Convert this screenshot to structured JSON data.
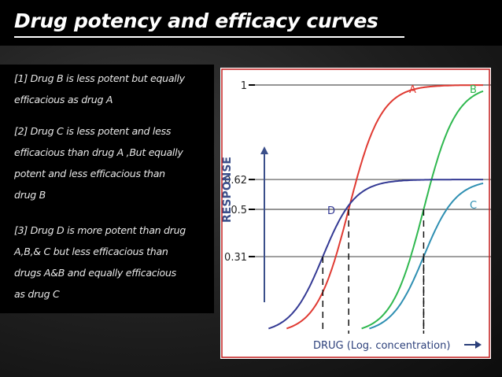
{
  "title": "Drug potency and efficacy curves",
  "paragraphs": [
    [
      "[1] Drug B is less potent but equally",
      "efficacious as drug A"
    ],
    [
      "[2] Drug C is less potent and less",
      "efficacious than drug A ,But equally",
      "potent and less efficacious than",
      "drug  B"
    ],
    [
      "[3] Drug D is more potent than drug",
      "A,B,& C but less efficacious than",
      "drugs A&B and equally efficacious",
      "as drug C"
    ]
  ],
  "chart_data": {
    "type": "line",
    "title": "",
    "xlabel": "DRUG (Log. concentration)",
    "ylabel": "RESPONSE",
    "ylim": [
      0,
      1
    ],
    "y_ticks": [
      {
        "value": 1,
        "label": "1"
      },
      {
        "value": 0.62,
        "label": "0.62"
      },
      {
        "value": 0.5,
        "label": "0.5"
      },
      {
        "value": 0.31,
        "label": "0.31"
      }
    ],
    "grid": true,
    "series": [
      {
        "name": "A",
        "color": "#e03a32",
        "emax": 1.0,
        "ec50": 3.2
      },
      {
        "name": "B",
        "color": "#2fb84f",
        "emax": 1.0,
        "ec50": 6.1
      },
      {
        "name": "C",
        "color": "#2e8fb2",
        "emax": 0.62,
        "ec50": 6.1
      },
      {
        "name": "D",
        "color": "#343a94",
        "emax": 0.62,
        "ec50": 2.2
      }
    ],
    "colors": {
      "frame": "#c41e1e",
      "dashed": "#111111"
    }
  }
}
